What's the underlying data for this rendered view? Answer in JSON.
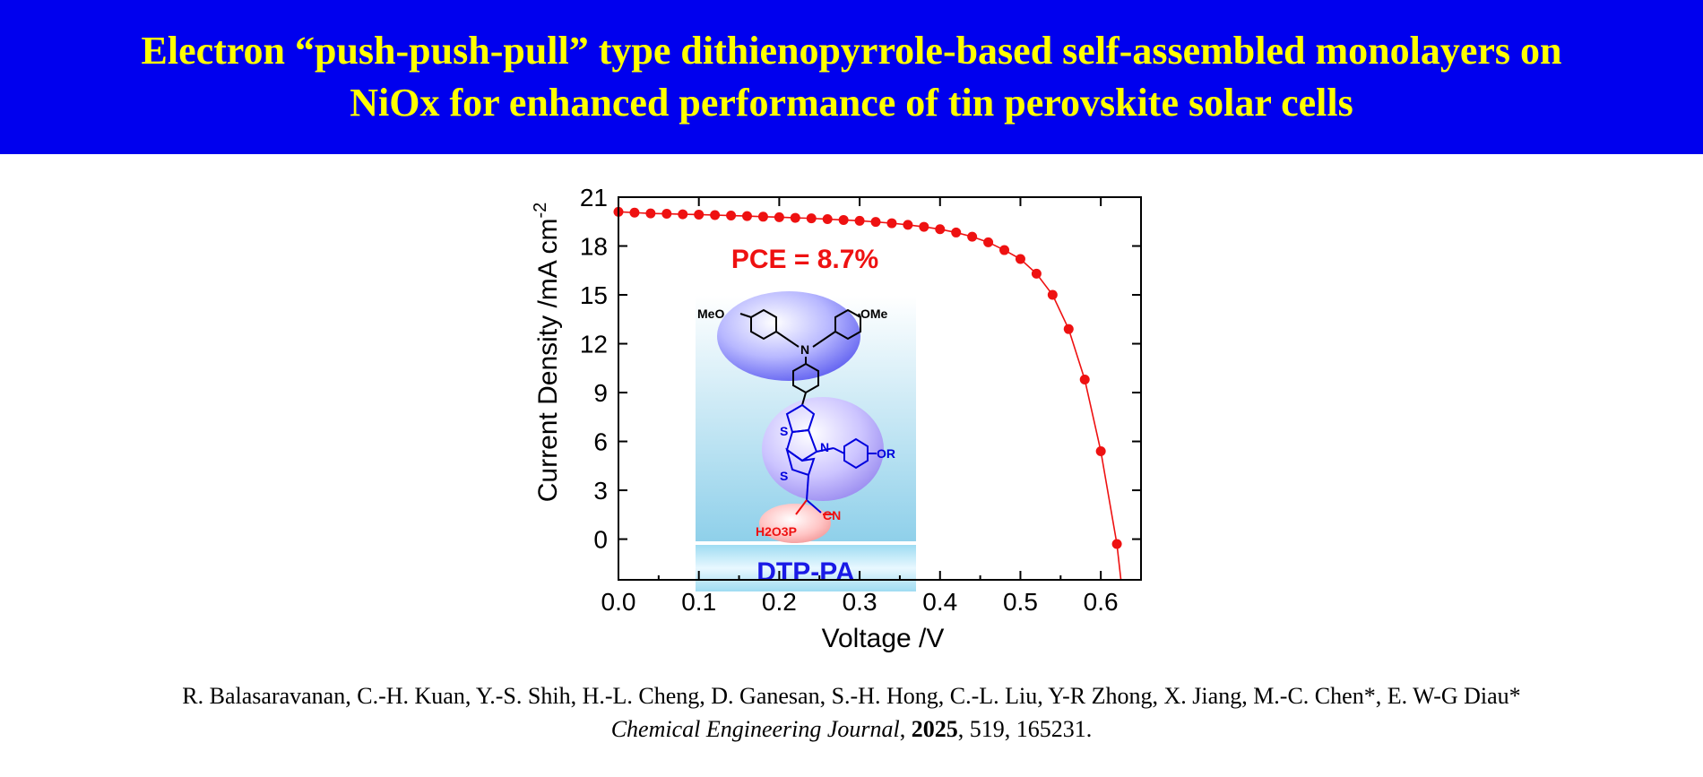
{
  "header": {
    "title_line1": "Electron “push-push-pull” type dithienopyrrole-based self-assembled monolayers on",
    "title_line2": "NiOx for enhanced performance of tin perovskite solar cells"
  },
  "colors": {
    "banner_bg": "#0000ee",
    "banner_text": "#ffff00",
    "series": "#ee1111",
    "annotation": "#ee1111",
    "molecule_label": "#1a1ae6"
  },
  "chart_data": {
    "type": "scatter",
    "xlabel": "Voltage /V",
    "ylabel_main": "Current Density /mA cm",
    "ylabel_sup": "-2",
    "xlim": [
      0.0,
      0.65
    ],
    "ylim": [
      -2.5,
      21
    ],
    "xticks": [
      "0.0",
      "0.1",
      "0.2",
      "0.3",
      "0.4",
      "0.5",
      "0.6"
    ],
    "xtick_values": [
      0.0,
      0.1,
      0.2,
      0.3,
      0.4,
      0.5,
      0.6
    ],
    "yticks": [
      "21",
      "18",
      "15",
      "12",
      "9",
      "6",
      "3",
      "0"
    ],
    "ytick_values": [
      21,
      18,
      15,
      12,
      9,
      6,
      3,
      0
    ],
    "annotation": "PCE = 8.7%",
    "grid": false,
    "series": [
      {
        "x": [
          0.0,
          0.02,
          0.04,
          0.06,
          0.08,
          0.1,
          0.12,
          0.14,
          0.16,
          0.18,
          0.2,
          0.22,
          0.24,
          0.26,
          0.28,
          0.3,
          0.32,
          0.34,
          0.36,
          0.38,
          0.4,
          0.42,
          0.44,
          0.46,
          0.48,
          0.5,
          0.52,
          0.54,
          0.56,
          0.58,
          0.6,
          0.62
        ],
        "y": [
          20.1,
          20.05,
          20.0,
          19.98,
          19.95,
          19.93,
          19.9,
          19.87,
          19.84,
          19.8,
          19.77,
          19.73,
          19.7,
          19.65,
          19.6,
          19.55,
          19.48,
          19.4,
          19.3,
          19.18,
          19.03,
          18.83,
          18.57,
          18.23,
          17.75,
          17.2,
          16.3,
          15.0,
          12.9,
          9.8,
          5.4,
          -0.3
        ]
      }
    ]
  },
  "inset": {
    "label": "DTP-PA",
    "atoms": {
      "meo": "MeO",
      "ome": "OMe",
      "n_top": "N",
      "s1": "S",
      "s2": "S",
      "n_mid": "N",
      "or": "OR",
      "cn": "CN",
      "h2o3p": "H2O3P"
    }
  },
  "citation": {
    "authors": "R. Balasaravanan, C.-H. Kuan, Y.-S. Shih, H.-L. Cheng, D. Ganesan, S.-H. Hong, C.-L. Liu, Y-R Zhong, X. Jiang, M.-C. Chen*, E. W-G Diau*",
    "journal": "Chemical Engineering Journal",
    "sep1": ", ",
    "year": "2025",
    "rest": ", 519, 165231."
  }
}
